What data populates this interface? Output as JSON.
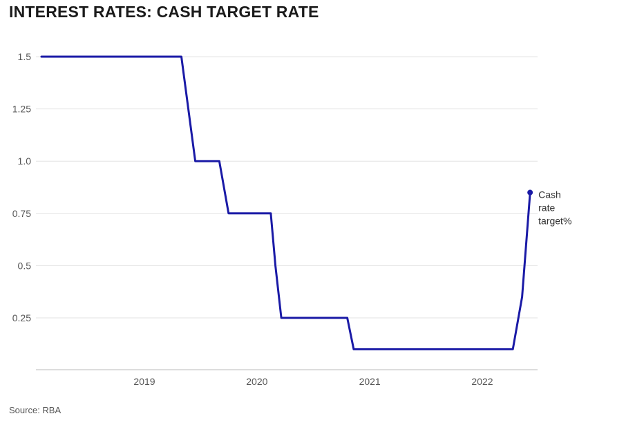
{
  "title": "INTEREST RATES: CASH TARGET RATE",
  "source": "Source: RBA",
  "colors": {
    "line": "#1a1aa6",
    "grid": "#e3e3e3",
    "axis": "#bbbbbb"
  },
  "chart_data": {
    "type": "line",
    "title": "INTEREST RATES: CASH TARGET RATE",
    "xlabel": "",
    "ylabel": "",
    "y_ticks": [
      {
        "value": 0.25,
        "label": "0.25"
      },
      {
        "value": 0.5,
        "label": "0.5"
      },
      {
        "value": 0.75,
        "label": "0.75"
      },
      {
        "value": 1.0,
        "label": "1.0"
      },
      {
        "value": 1.25,
        "label": "1.25"
      },
      {
        "value": 1.5,
        "label": "1.5"
      }
    ],
    "x_ticks": [
      {
        "value": "2019-01-01",
        "label": "2019"
      },
      {
        "value": "2020-01-01",
        "label": "2020"
      },
      {
        "value": "2021-01-01",
        "label": "2021"
      },
      {
        "value": "2022-01-01",
        "label": "2022"
      }
    ],
    "xlim": [
      "2018-01-01",
      "2022-06-30"
    ],
    "ylim": [
      0.0,
      1.5
    ],
    "grid": true,
    "series": [
      {
        "name": "Cash rate target%",
        "label_lines": [
          "Cash",
          "rate",
          "target%"
        ],
        "points": [
          {
            "x": "2018-02-01",
            "y": 1.5
          },
          {
            "x": "2019-05-01",
            "y": 1.5
          },
          {
            "x": "2019-06-15",
            "y": 1.0
          },
          {
            "x": "2019-09-01",
            "y": 1.0
          },
          {
            "x": "2019-10-01",
            "y": 0.75
          },
          {
            "x": "2020-02-15",
            "y": 0.75
          },
          {
            "x": "2020-03-01",
            "y": 0.5
          },
          {
            "x": "2020-03-20",
            "y": 0.25
          },
          {
            "x": "2020-10-20",
            "y": 0.25
          },
          {
            "x": "2020-11-10",
            "y": 0.1
          },
          {
            "x": "2022-04-10",
            "y": 0.1
          },
          {
            "x": "2022-05-10",
            "y": 0.35
          },
          {
            "x": "2022-06-05",
            "y": 0.85
          }
        ]
      }
    ]
  }
}
